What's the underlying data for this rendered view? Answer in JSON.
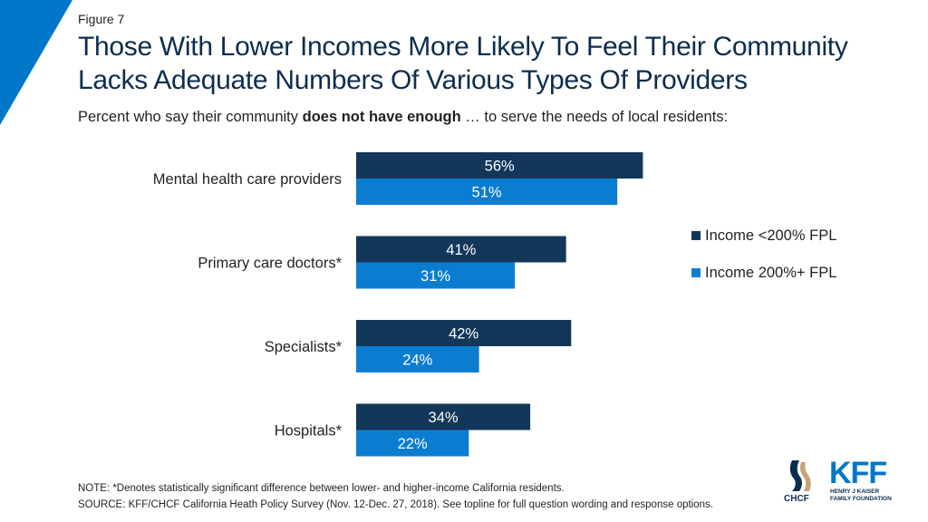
{
  "figure_label": "Figure 7",
  "title": "Those With Lower Incomes More Likely To Feel Their Community Lacks Adequate Numbers Of Various Types Of Providers",
  "subtitle": {
    "before": "Percent who say their community ",
    "bold": "does not have enough",
    "after": " … to serve the needs of local residents:"
  },
  "colors": {
    "accent": "#0077c8",
    "dark_navy": "#0b2d4e",
    "series_1": "#12375a",
    "series_2": "#0b7dd1"
  },
  "chart_data": {
    "type": "bar",
    "orientation": "horizontal",
    "categories": [
      "Mental health care providers",
      "Primary care doctors*",
      "Specialists*",
      "Hospitals*"
    ],
    "series": [
      {
        "name": "Income <200% FPL",
        "values": [
          56,
          41,
          42,
          34
        ],
        "labels": [
          "56%",
          "41%",
          "42%",
          "34%"
        ]
      },
      {
        "name": "Income 200%+ FPL",
        "values": [
          51,
          31,
          24,
          22
        ],
        "labels": [
          "51%",
          "31%",
          "24%",
          "22%"
        ]
      }
    ],
    "xlim": [
      0,
      100
    ],
    "grid": false,
    "legend_position": "right"
  },
  "footer": {
    "note": "NOTE: *Denotes statistically significant difference between lower- and higher-income California residents.",
    "source": "SOURCE: KFF/CHCF California Heath Policy Survey (Nov. 12-Dec. 27, 2018). See topline for full question wording and response options."
  },
  "logos": {
    "chcf": "CHCF",
    "kff": "KFF",
    "kff_line1": "HENRY J KAISER",
    "kff_line2": "FAMILY FOUNDATION"
  }
}
